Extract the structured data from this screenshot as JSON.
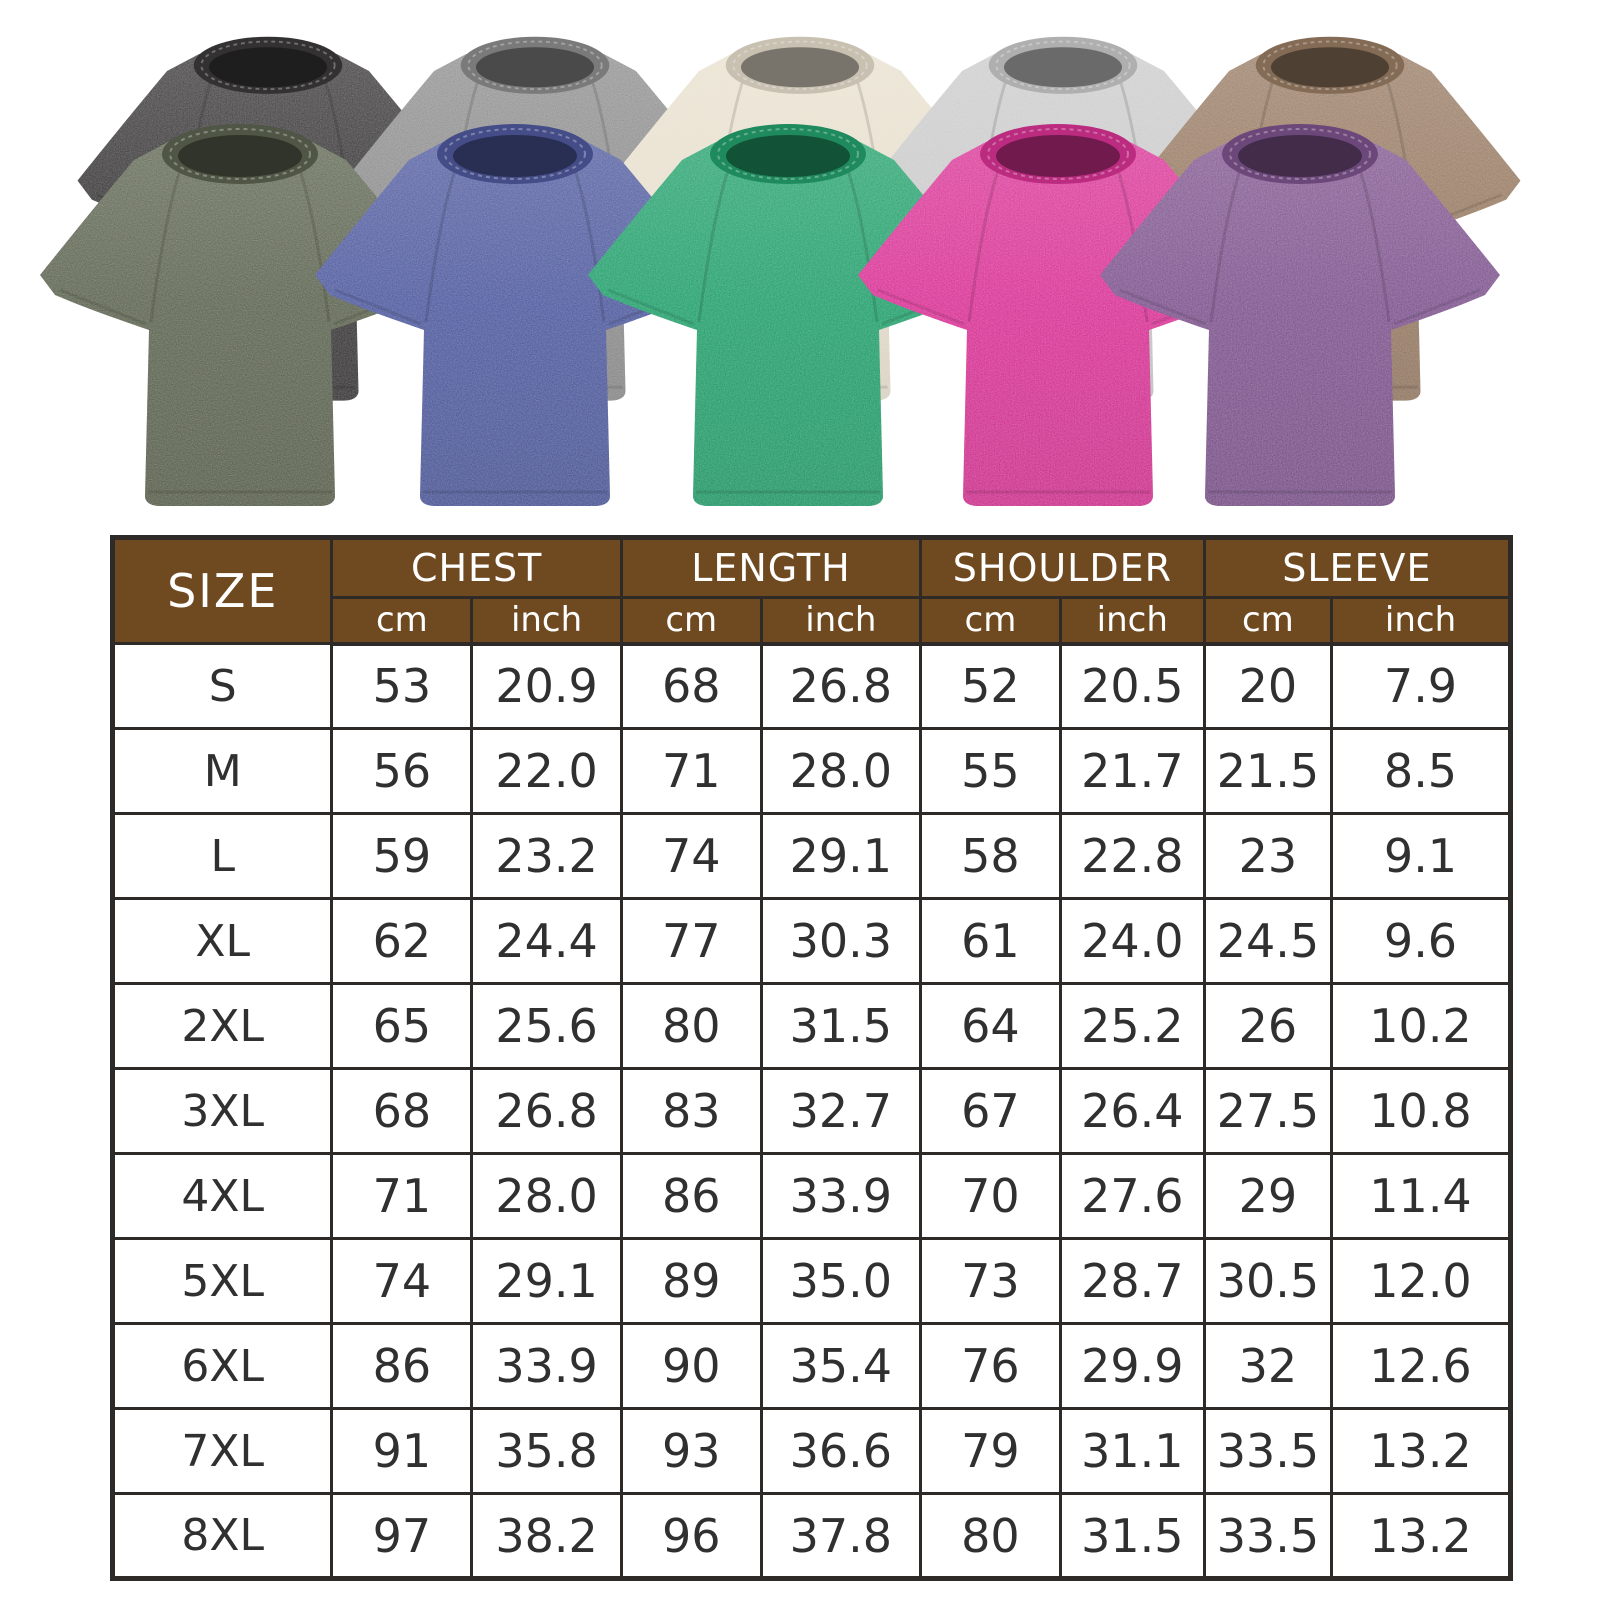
{
  "product_gallery": {
    "shirts": [
      {
        "name": "black-washed-tshirt",
        "color": "#3b3939"
      },
      {
        "name": "gray-washed-tshirt",
        "color": "#8e8e8e"
      },
      {
        "name": "cream-washed-tshirt",
        "color": "#e8e0ce"
      },
      {
        "name": "light-gray-washed-tshirt",
        "color": "#cbcbcb"
      },
      {
        "name": "brown-washed-tshirt",
        "color": "#987c64"
      },
      {
        "name": "army-green-washed-tshirt",
        "color": "#5d6450"
      },
      {
        "name": "blue-washed-tshirt",
        "color": "#4f5a9e"
      },
      {
        "name": "green-washed-tshirt",
        "color": "#23a06c"
      },
      {
        "name": "rose-pink-washed-tshirt",
        "color": "#d93295"
      },
      {
        "name": "purple-washed-tshirt",
        "color": "#7e548e"
      }
    ]
  },
  "size_chart": {
    "size_label": "SIZE",
    "groups": [
      "CHEST",
      "LENGTH",
      "SHOULDER",
      "SLEEVE"
    ],
    "units": [
      "cm",
      "inch"
    ],
    "rows": [
      [
        "S",
        "53",
        "20.9",
        "68",
        "26.8",
        "52",
        "20.5",
        "20",
        "7.9"
      ],
      [
        "M",
        "56",
        "22.0",
        "71",
        "28.0",
        "55",
        "21.7",
        "21.5",
        "8.5"
      ],
      [
        "L",
        "59",
        "23.2",
        "74",
        "29.1",
        "58",
        "22.8",
        "23",
        "9.1"
      ],
      [
        "XL",
        "62",
        "24.4",
        "77",
        "30.3",
        "61",
        "24.0",
        "24.5",
        "9.6"
      ],
      [
        "2XL",
        "65",
        "25.6",
        "80",
        "31.5",
        "64",
        "25.2",
        "26",
        "10.2"
      ],
      [
        "3XL",
        "68",
        "26.8",
        "83",
        "32.7",
        "67",
        "26.4",
        "27.5",
        "10.8"
      ],
      [
        "4XL",
        "71",
        "28.0",
        "86",
        "33.9",
        "70",
        "27.6",
        "29",
        "11.4"
      ],
      [
        "5XL",
        "74",
        "29.1",
        "89",
        "35.0",
        "73",
        "28.7",
        "30.5",
        "12.0"
      ],
      [
        "6XL",
        "86",
        "33.9",
        "90",
        "35.4",
        "76",
        "29.9",
        "32",
        "12.6"
      ],
      [
        "7XL",
        "91",
        "35.8",
        "93",
        "36.6",
        "79",
        "31.1",
        "33.5",
        "13.2"
      ],
      [
        "8XL",
        "97",
        "38.2",
        "96",
        "37.8",
        "80",
        "31.5",
        "33.5",
        "13.2"
      ]
    ],
    "colors": {
      "header_bg": "#6f4a21",
      "header_text": "#ffffff",
      "border": "#2d2a27",
      "cell_text": "#303030",
      "cell_bg": "#ffffff"
    }
  },
  "chart_data": {
    "type": "table",
    "title": "",
    "columns": [
      "SIZE",
      "CHEST cm",
      "CHEST inch",
      "LENGTH cm",
      "LENGTH inch",
      "SHOULDER cm",
      "SHOULDER inch",
      "SLEEVE cm",
      "SLEEVE inch"
    ],
    "rows": [
      [
        "S",
        53,
        20.9,
        68,
        26.8,
        52,
        20.5,
        20,
        7.9
      ],
      [
        "M",
        56,
        22.0,
        71,
        28.0,
        55,
        21.7,
        21.5,
        8.5
      ],
      [
        "L",
        59,
        23.2,
        74,
        29.1,
        58,
        22.8,
        23,
        9.1
      ],
      [
        "XL",
        62,
        24.4,
        77,
        30.3,
        61,
        24.0,
        24.5,
        9.6
      ],
      [
        "2XL",
        65,
        25.6,
        80,
        31.5,
        64,
        25.2,
        26,
        10.2
      ],
      [
        "3XL",
        68,
        26.8,
        83,
        32.7,
        67,
        26.4,
        27.5,
        10.8
      ],
      [
        "4XL",
        71,
        28.0,
        86,
        33.9,
        70,
        27.6,
        29,
        11.4
      ],
      [
        "5XL",
        74,
        29.1,
        89,
        35.0,
        73,
        28.7,
        30.5,
        12.0
      ],
      [
        "6XL",
        86,
        33.9,
        90,
        35.4,
        76,
        29.9,
        32,
        12.6
      ],
      [
        "7XL",
        91,
        35.8,
        93,
        36.6,
        79,
        31.1,
        33.5,
        13.2
      ],
      [
        "8XL",
        97,
        38.2,
        96,
        37.8,
        80,
        31.5,
        33.5,
        13.2
      ]
    ]
  }
}
